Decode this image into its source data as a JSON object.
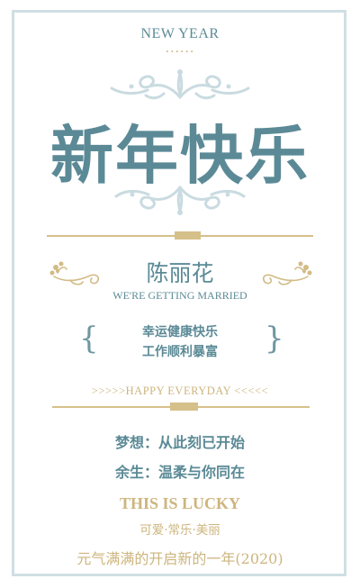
{
  "header": {
    "new_year": "NEW YEAR",
    "dots": "......"
  },
  "title": "新年快乐",
  "couple": {
    "name": "陈丽花",
    "subtitle": "WE'RE GETTING MARRIED"
  },
  "wishes": {
    "line1": "幸运健康快乐",
    "line2": "工作顺利暴富",
    "left_brace": "{",
    "right_brace": "}"
  },
  "happy_everyday": ">>>>>HAPPY EVERYDAY <<<<<",
  "dreams": {
    "line1": "梦想：从此刻已开始",
    "line2": "余生：温柔与你同在"
  },
  "footer": {
    "lucky": "THIS IS LUCKY",
    "cute": "可爱·常乐·美丽",
    "year_line": "元气满满的开启新的一年(2020)"
  },
  "colors": {
    "teal": "#5b8a96",
    "gold": "#cdb57e",
    "frame": "#cfdfe3"
  }
}
